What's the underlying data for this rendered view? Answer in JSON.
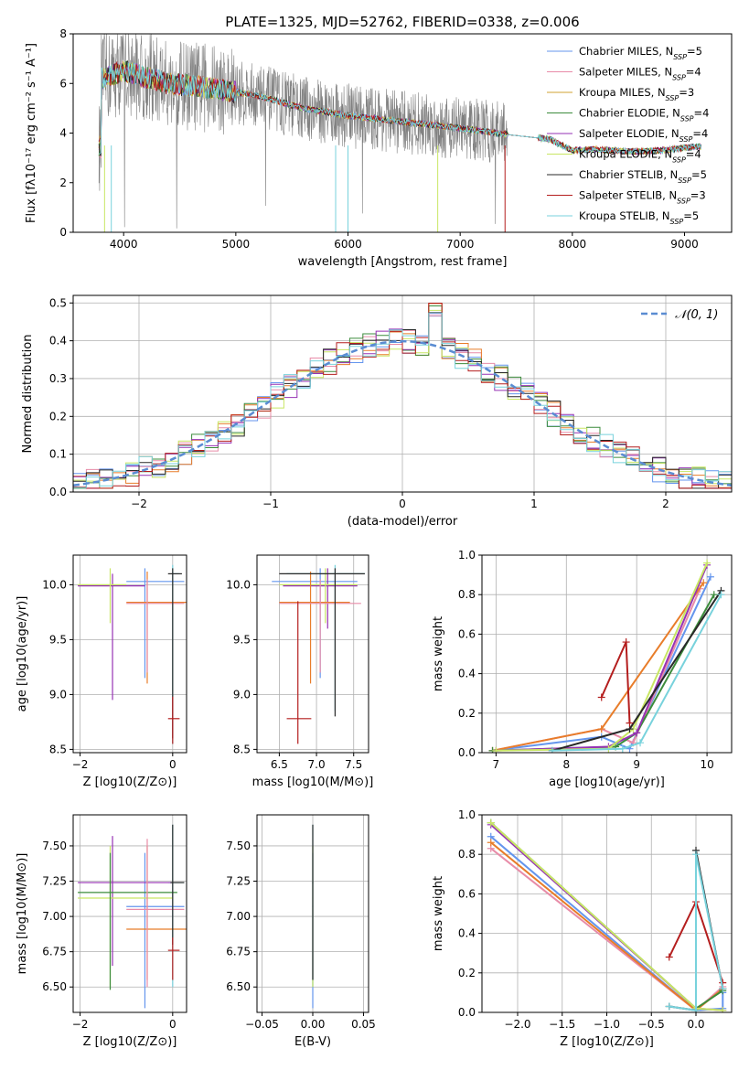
{
  "figure_title": "PLATE=1325, MJD=52762, FIBERID=0338, z=0.006",
  "colors": {
    "Chabrier MILES": "#6495ed",
    "Salpeter MILES": "#e88ca8",
    "Kroupa MILES": "#d2a032",
    "Chabrier ELODIE": "#3c8c3c",
    "Salpeter ELODIE": "#9632b4",
    "Kroupa ELODIE": "#c8e664",
    "Chabrier STELIB": "#282828",
    "Salpeter STELIB": "#b41e1e",
    "Kroupa STELIB": "#78d2dc",
    "gauss": "#5a8cd2",
    "data": "#808080",
    "extra_orange": "#e87d2a"
  },
  "chart_data": [
    {
      "id": "spectrum",
      "type": "line",
      "title": "PLATE=1325, MJD=52762, FIBERID=0338, z=0.006",
      "xlabel": "wavelength [Angstrom, rest frame]",
      "ylabel": "Flux [fλ10⁻¹⁷ erg cm⁻² s⁻¹ A⁻¹]",
      "xlim": [
        3550,
        9420
      ],
      "ylim": [
        0,
        8
      ],
      "xticks": [
        4000,
        5000,
        6000,
        7000,
        8000,
        9000
      ],
      "yticks": [
        0,
        2,
        4,
        6,
        8
      ],
      "legend_position": "upper-right",
      "legend": [
        {
          "name": "Chabrier MILES",
          "nssp": "5"
        },
        {
          "name": "Salpeter MILES",
          "nssp": "4"
        },
        {
          "name": "Kroupa MILES",
          "nssp": "3"
        },
        {
          "name": "Chabrier ELODIE",
          "nssp": "4"
        },
        {
          "name": "Salpeter ELODIE",
          "nssp": "4"
        },
        {
          "name": "Kroupa ELODIE",
          "nssp": "4"
        },
        {
          "name": "Chabrier STELIB",
          "nssp": "5"
        },
        {
          "name": "Salpeter STELIB",
          "nssp": "3"
        },
        {
          "name": "Kroupa STELIB",
          "nssp": "5"
        }
      ],
      "continuum": {
        "x": [
          3800,
          4000,
          4400,
          4800,
          5200,
          5600,
          6000,
          6500,
          7000,
          7400,
          7600,
          7800,
          8000,
          8200,
          8500,
          8800,
          9100
        ],
        "y": [
          6.2,
          6.5,
          6.0,
          5.8,
          5.5,
          5.0,
          4.7,
          4.45,
          4.2,
          3.95,
          3.85,
          3.75,
          3.3,
          3.35,
          3.25,
          3.3,
          3.45
        ]
      },
      "data_range": [
        3780,
        7420
      ],
      "data_amplitude": 1.3
    },
    {
      "id": "residuals",
      "type": "histogram",
      "xlabel": "(data-model)/error",
      "ylabel": "Normed distribution",
      "xlim": [
        -2.5,
        2.5
      ],
      "ylim": [
        0,
        0.52
      ],
      "xticks": [
        -2,
        -1,
        0,
        1,
        2
      ],
      "yticks": [
        0.0,
        0.1,
        0.2,
        0.3,
        0.4,
        0.5
      ],
      "legend": "𝒩(0, 1)",
      "legend_position": "upper-right",
      "bin_width": 0.1,
      "peak_bin_value": 0.5
    },
    {
      "id": "age_vs_Z",
      "type": "errorbar",
      "xlabel": "Z [log10(Z/Z⊙)]",
      "ylabel": "age [log10(age/yr)]",
      "xlim": [
        -2.15,
        0.3
      ],
      "ylim": [
        8.47,
        10.27
      ],
      "xticks": [
        -2,
        0
      ],
      "yticks": [
        8.5,
        9.0,
        9.5,
        10.0
      ],
      "points": [
        {
          "c": "#78d2dc",
          "x": 0.0,
          "y": 10.1,
          "xl": 0.0,
          "xh": 0.15,
          "yl": 8.55,
          "yh": 10.18
        },
        {
          "c": "#6495ed",
          "x": -0.6,
          "y": 10.03,
          "xl": -1.0,
          "xh": 0.25,
          "yl": 9.15,
          "yh": 10.15
        },
        {
          "c": "#9632b4",
          "x": -1.3,
          "y": 9.99,
          "xl": -2.05,
          "xh": -0.6,
          "yl": 8.95,
          "yh": 10.1
        },
        {
          "c": "#c8e664",
          "x": -1.35,
          "y": 10.0,
          "xl": -2.05,
          "xh": -1.0,
          "yl": 9.65,
          "yh": 10.15
        },
        {
          "c": "#e87d2a",
          "x": -0.55,
          "y": 9.84,
          "xl": -1.0,
          "xh": 0.3,
          "yl": 9.1,
          "yh": 10.12
        },
        {
          "c": "#e88ca8",
          "x": -0.55,
          "y": 9.83,
          "xl": -1.0,
          "xh": 0.25,
          "yl": 9.2,
          "yh": 10.05
        },
        {
          "c": "#282828",
          "x": 0.0,
          "y": 10.1,
          "xl": -0.1,
          "xh": 0.2,
          "yl": 8.6,
          "yh": 10.15
        },
        {
          "c": "#b41e1e",
          "x": 0.0,
          "y": 8.78,
          "xl": -0.1,
          "xh": 0.15,
          "yl": 8.55,
          "yh": 8.98
        }
      ]
    },
    {
      "id": "age_vs_mass",
      "type": "errorbar",
      "xlabel": "mass [log10(M/M⊙)]",
      "ylabel": "",
      "xlim": [
        6.2,
        7.7
      ],
      "ylim": [
        8.47,
        10.27
      ],
      "xticks": [
        6.5,
        7.0,
        7.5
      ],
      "yticks": [
        8.5,
        9.0,
        9.5,
        10.0
      ],
      "points": [
        {
          "c": "#78d2dc",
          "x": 7.25,
          "y": 10.1,
          "xl": 6.6,
          "xh": 7.65,
          "yl": 8.85,
          "yh": 10.18
        },
        {
          "c": "#6495ed",
          "x": 7.05,
          "y": 10.03,
          "xl": 6.4,
          "xh": 7.55,
          "yl": 9.15,
          "yh": 10.15
        },
        {
          "c": "#9632b4",
          "x": 7.15,
          "y": 9.99,
          "xl": 6.55,
          "xh": 7.55,
          "yl": 9.6,
          "yh": 10.15
        },
        {
          "c": "#c8e664",
          "x": 7.12,
          "y": 10.0,
          "xl": 6.5,
          "xh": 7.55,
          "yl": 9.65,
          "yh": 10.15
        },
        {
          "c": "#e87d2a",
          "x": 6.92,
          "y": 9.84,
          "xl": 6.5,
          "xh": 7.45,
          "yl": 9.1,
          "yh": 10.12
        },
        {
          "c": "#e88ca8",
          "x": 7.05,
          "y": 9.83,
          "xl": 6.5,
          "xh": 7.6,
          "yl": 9.2,
          "yh": 10.05
        },
        {
          "c": "#282828",
          "x": 7.25,
          "y": 10.1,
          "xl": 6.5,
          "xh": 7.65,
          "yl": 8.8,
          "yh": 10.15
        },
        {
          "c": "#b41e1e",
          "x": 6.75,
          "y": 8.78,
          "xl": 6.6,
          "xh": 6.93,
          "yl": 8.55,
          "yh": 9.85
        }
      ]
    },
    {
      "id": "weight_vs_age",
      "type": "line",
      "xlabel": "age [log10(age/yr)]",
      "ylabel": "mass weight",
      "xlim": [
        6.8,
        10.35
      ],
      "ylim": [
        0,
        1.0
      ],
      "xticks": [
        7,
        8,
        9,
        10
      ],
      "yticks": [
        0.0,
        0.2,
        0.4,
        0.6,
        0.8,
        1.0
      ],
      "series": [
        {
          "c": "#6495ed",
          "x": [
            6.95,
            8.5,
            8.9,
            10.05
          ],
          "y": [
            0.01,
            0.08,
            0.02,
            0.89
          ]
        },
        {
          "c": "#e88ca8",
          "x": [
            6.95,
            8.5,
            8.95,
            9.9
          ],
          "y": [
            0.01,
            0.12,
            0.05,
            0.83
          ]
        },
        {
          "c": "#e87d2a",
          "x": [
            6.95,
            8.5,
            9.95
          ],
          "y": [
            0.01,
            0.12,
            0.86
          ]
        },
        {
          "c": "#3c8c3c",
          "x": [
            6.95,
            8.7,
            9.0,
            10.1
          ],
          "y": [
            0.01,
            0.03,
            0.1,
            0.8
          ]
        },
        {
          "c": "#9632b4",
          "x": [
            7.0,
            8.6,
            9.0,
            10.0
          ],
          "y": [
            0.01,
            0.03,
            0.1,
            0.95
          ]
        },
        {
          "c": "#c8e664",
          "x": [
            7.0,
            8.6,
            8.95,
            10.0
          ],
          "y": [
            0.01,
            0.02,
            0.12,
            0.96
          ]
        },
        {
          "c": "#282828",
          "x": [
            7.8,
            8.9,
            10.2
          ],
          "y": [
            0.01,
            0.12,
            0.82
          ]
        },
        {
          "c": "#b41e1e",
          "x": [
            8.5,
            8.85,
            8.9
          ],
          "y": [
            0.28,
            0.56,
            0.15
          ]
        },
        {
          "c": "#78d2dc",
          "x": [
            7.8,
            8.8,
            9.05,
            10.2
          ],
          "y": [
            0.01,
            0.02,
            0.05,
            0.8
          ]
        }
      ]
    },
    {
      "id": "mass_vs_Z",
      "type": "errorbar",
      "xlabel": "Z [log10(Z/Z⊙)]",
      "ylabel": "mass [log10(M/M⊙)]",
      "xlim": [
        -2.15,
        0.3
      ],
      "ylim": [
        6.32,
        7.72
      ],
      "xticks": [
        -2,
        0
      ],
      "yticks": [
        6.5,
        6.75,
        7.0,
        7.25,
        7.5
      ],
      "points": [
        {
          "c": "#78d2dc",
          "x": 0.0,
          "y": 7.24,
          "xl": -0.1,
          "xh": 0.25,
          "yl": 6.5,
          "yh": 7.65
        },
        {
          "c": "#6495ed",
          "x": -0.6,
          "y": 7.07,
          "xl": -1.0,
          "xh": 0.25,
          "yl": 6.35,
          "yh": 7.45
        },
        {
          "c": "#9632b4",
          "x": -1.3,
          "y": 7.24,
          "xl": -2.05,
          "xh": 0.0,
          "yl": 6.65,
          "yh": 7.57
        },
        {
          "c": "#c8e664",
          "x": -1.35,
          "y": 7.13,
          "xl": -2.05,
          "xh": 0.0,
          "yl": 6.5,
          "yh": 7.5
        },
        {
          "c": "#3c8c3c",
          "x": -1.35,
          "y": 7.17,
          "xl": -2.05,
          "xh": 0.1,
          "yl": 6.48,
          "yh": 7.45
        },
        {
          "c": "#e87d2a",
          "x": -0.55,
          "y": 6.91,
          "xl": -1.0,
          "xh": 0.3,
          "yl": 6.55,
          "yh": 7.5
        },
        {
          "c": "#e88ca8",
          "x": -0.55,
          "y": 7.05,
          "xl": -1.0,
          "xh": 0.25,
          "yl": 6.5,
          "yh": 7.55
        },
        {
          "c": "#282828",
          "x": 0.0,
          "y": 7.24,
          "xl": -0.05,
          "xh": 0.25,
          "yl": 6.8,
          "yh": 7.65
        },
        {
          "c": "#b41e1e",
          "x": 0.0,
          "y": 6.76,
          "xl": -0.1,
          "xh": 0.15,
          "yl": 6.55,
          "yh": 6.85
        }
      ]
    },
    {
      "id": "mass_vs_EBV",
      "type": "errorbar",
      "xlabel": "E(B-V)",
      "ylabel": "",
      "xlim": [
        -0.055,
        0.055
      ],
      "ylim": [
        6.32,
        7.72
      ],
      "xticks": [
        -0.05,
        0.0,
        0.05
      ],
      "yticks": [
        6.5,
        6.75,
        7.0,
        7.25,
        7.5
      ],
      "points": [
        {
          "c": "#78d2dc",
          "x": 0.0,
          "y": 7.24,
          "xl": -0.0005,
          "xh": 0.0005,
          "yl": 6.5,
          "yh": 7.65
        },
        {
          "c": "#6495ed",
          "x": 0.0,
          "y": 7.07,
          "xl": -0.0005,
          "xh": 0.0005,
          "yl": 6.35,
          "yh": 7.45
        },
        {
          "c": "#c8e664",
          "x": 0.0,
          "y": 7.13,
          "xl": -0.0005,
          "xh": 0.0005,
          "yl": 6.5,
          "yh": 7.5
        },
        {
          "c": "#282828",
          "x": 0.0,
          "y": 7.24,
          "xl": -0.0005,
          "xh": 0.0005,
          "yl": 6.55,
          "yh": 7.65
        }
      ]
    },
    {
      "id": "weight_vs_Z",
      "type": "line",
      "xlabel": "Z [log10(Z/Z⊙)]",
      "ylabel": "mass weight",
      "xlim": [
        -2.4,
        0.4
      ],
      "ylim": [
        0,
        1.0
      ],
      "xticks": [
        -2.0,
        -1.5,
        -1.0,
        -0.5,
        0.0
      ],
      "yticks": [
        0.0,
        0.2,
        0.4,
        0.6,
        0.8,
        1.0
      ],
      "series": [
        {
          "c": "#6495ed",
          "x": [
            -2.3,
            0.0,
            0.3,
            0.3
          ],
          "y": [
            0.89,
            0.01,
            0.02,
            0.1
          ]
        },
        {
          "c": "#e88ca8",
          "x": [
            -2.3,
            0.0,
            0.3
          ],
          "y": [
            0.83,
            0.01,
            0.13
          ]
        },
        {
          "c": "#e87d2a",
          "x": [
            -2.3,
            0.0,
            0.3
          ],
          "y": [
            0.86,
            0.01,
            0.12
          ]
        },
        {
          "c": "#3c8c3c",
          "x": [
            -2.3,
            0.0,
            0.3
          ],
          "y": [
            0.96,
            0.02,
            0.11
          ]
        },
        {
          "c": "#9632b4",
          "x": [
            -2.3,
            0.0,
            0.3
          ],
          "y": [
            0.95,
            0.02,
            0.01
          ]
        },
        {
          "c": "#c8e664",
          "x": [
            -2.3,
            0.0,
            0.3
          ],
          "y": [
            0.96,
            0.02,
            0.01
          ]
        },
        {
          "c": "#282828",
          "x": [
            -0.3,
            0.0,
            0.0,
            0.3
          ],
          "y": [
            0.03,
            0.01,
            0.82,
            0.12
          ]
        },
        {
          "c": "#b41e1e",
          "x": [
            -0.3,
            0.0,
            0.3
          ],
          "y": [
            0.28,
            0.56,
            0.15
          ]
        },
        {
          "c": "#78d2dc",
          "x": [
            -0.3,
            0.0,
            0.0,
            0.3
          ],
          "y": [
            0.03,
            0.01,
            0.8,
            0.12
          ]
        }
      ]
    }
  ]
}
